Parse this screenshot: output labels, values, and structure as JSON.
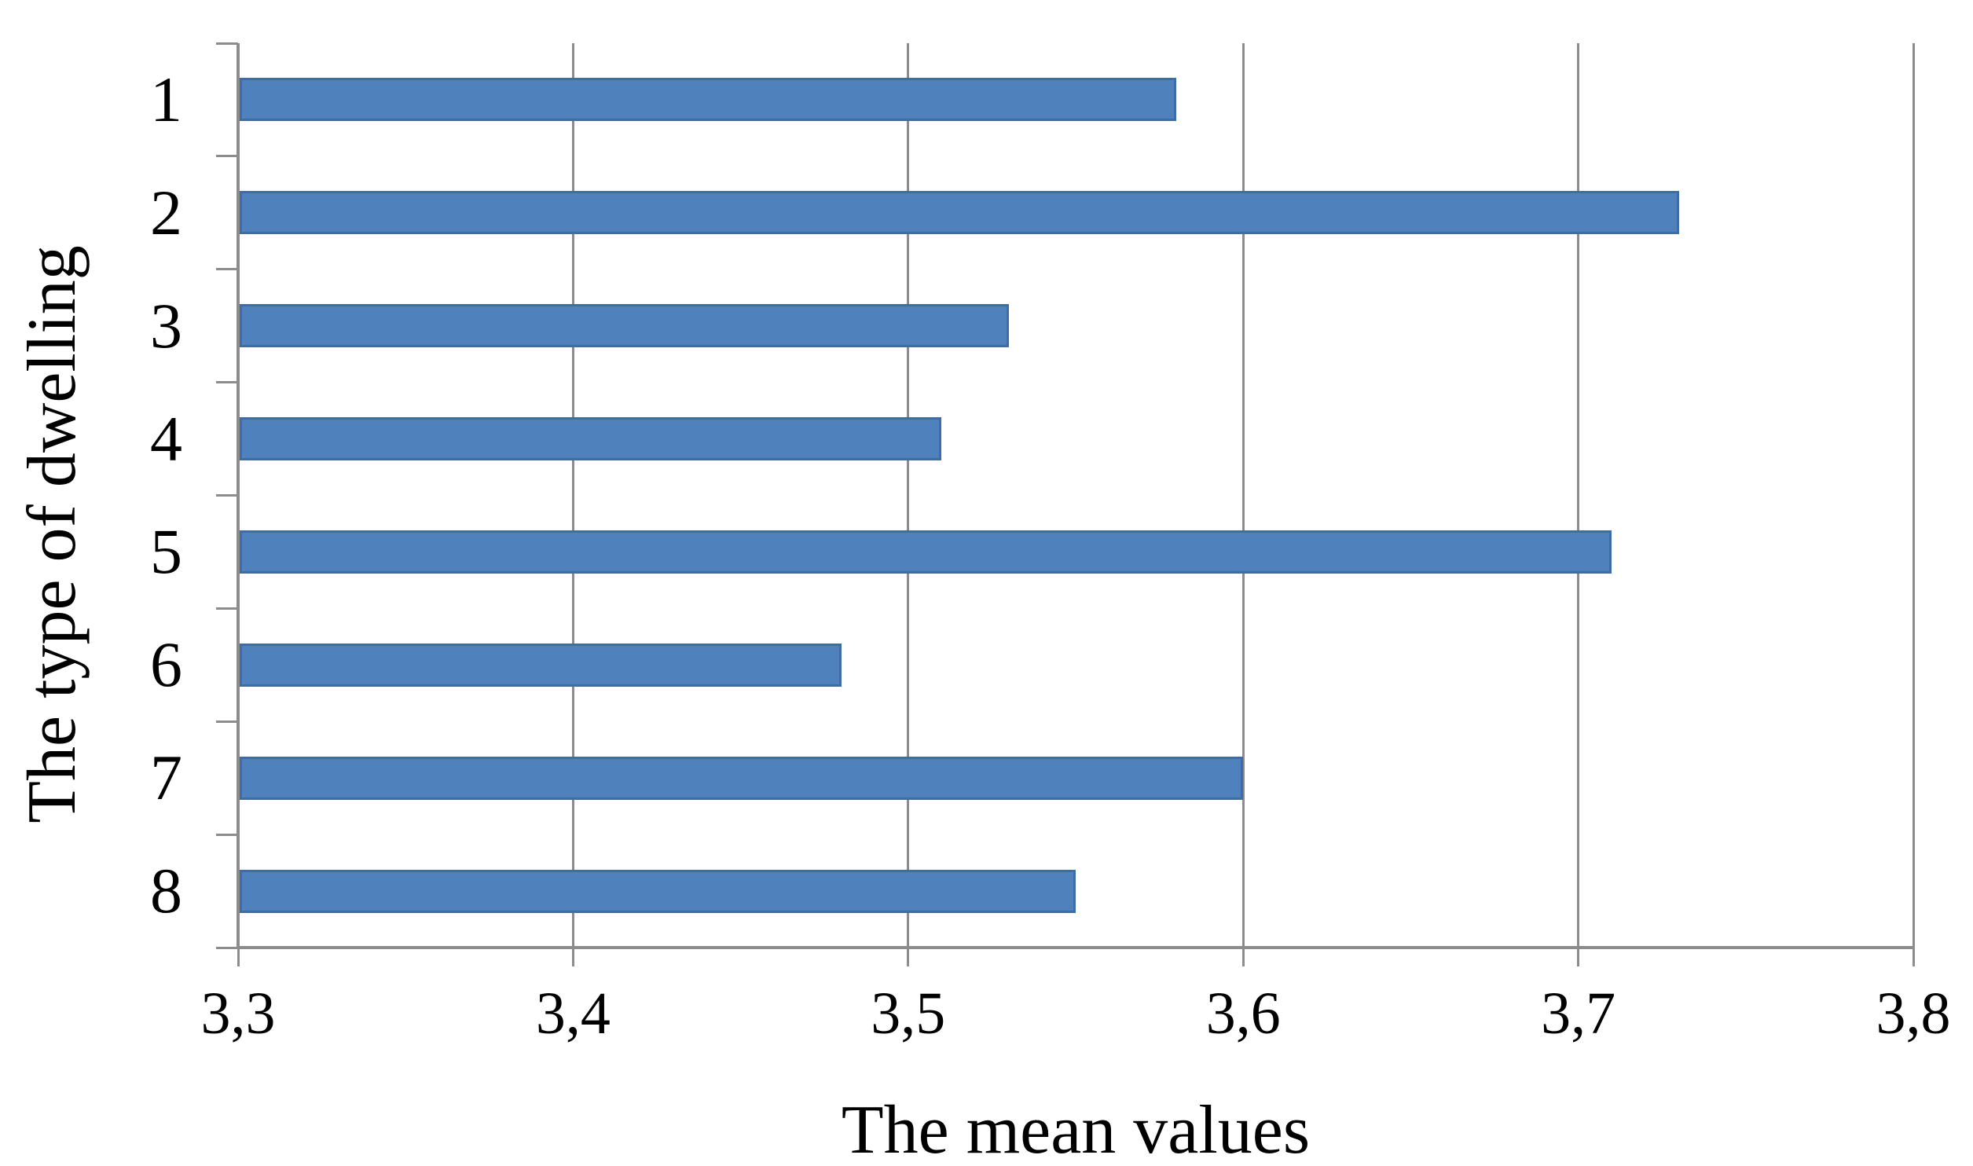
{
  "chart_data": {
    "type": "bar",
    "orientation": "horizontal",
    "title": "",
    "xlabel": "The mean values",
    "ylabel": "The type of dwelling",
    "categories": [
      "1",
      "2",
      "3",
      "4",
      "5",
      "6",
      "7",
      "8"
    ],
    "values": [
      3.58,
      3.73,
      3.53,
      3.51,
      3.71,
      3.48,
      3.6,
      3.55
    ],
    "xlim": [
      3.3,
      3.8
    ],
    "x_ticks": [
      {
        "v": 3.3,
        "label": "3,3"
      },
      {
        "v": 3.4,
        "label": "3,4"
      },
      {
        "v": 3.5,
        "label": "3,5"
      },
      {
        "v": 3.6,
        "label": "3,6"
      },
      {
        "v": 3.7,
        "label": "3,7"
      },
      {
        "v": 3.8,
        "label": "3,8"
      }
    ],
    "decimal_separator": ",",
    "grid": true,
    "legend": false,
    "colors": {
      "bar_fill": "#4F81BD",
      "bar_border": "#3E6CA8",
      "grid_line": "#8C8C8C",
      "axis_line": "#8C8C8C",
      "tick_line": "#8C8C8C",
      "text": "#000000",
      "background": "#FFFFFF"
    }
  }
}
